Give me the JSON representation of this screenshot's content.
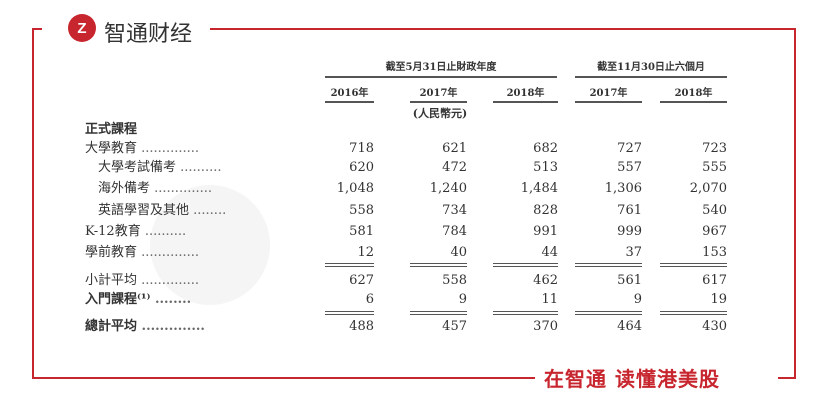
{
  "brand": {
    "logo": "Z",
    "name": "智通财经",
    "slogan": "在智通 读懂港美股",
    "accent": "#c8262e"
  },
  "table": {
    "group_headers": [
      "截至5月31日止財政年度",
      "截至11月30日止六個月"
    ],
    "columns": [
      "2016年",
      "2017年",
      "2018年",
      "2017年",
      "2018年"
    ],
    "unit": "(人民幣元)",
    "section": "正式課程",
    "rows": [
      {
        "label": "大學教育",
        "values": [
          "718",
          "621",
          "682",
          "727",
          "723"
        ]
      },
      {
        "label": "大學考試備考",
        "values": [
          "620",
          "472",
          "513",
          "557",
          "555"
        ]
      },
      {
        "label": "海外備考",
        "values": [
          "1,048",
          "1,240",
          "1,484",
          "1,306",
          "2,070"
        ]
      },
      {
        "label": "英語學習及其他",
        "values": [
          "558",
          "734",
          "828",
          "761",
          "540"
        ]
      },
      {
        "label": "K-12教育",
        "values": [
          "581",
          "784",
          "991",
          "999",
          "967"
        ]
      },
      {
        "label": "學前教育",
        "values": [
          "12",
          "40",
          "44",
          "37",
          "153"
        ]
      },
      {
        "label": "小計平均",
        "values": [
          "627",
          "558",
          "462",
          "561",
          "617"
        ]
      },
      {
        "label": "入門課程⁽¹⁾",
        "values": [
          "6",
          "9",
          "11",
          "9",
          "19"
        ]
      },
      {
        "label": "總計平均",
        "values": [
          "488",
          "457",
          "370",
          "464",
          "430"
        ]
      }
    ]
  }
}
